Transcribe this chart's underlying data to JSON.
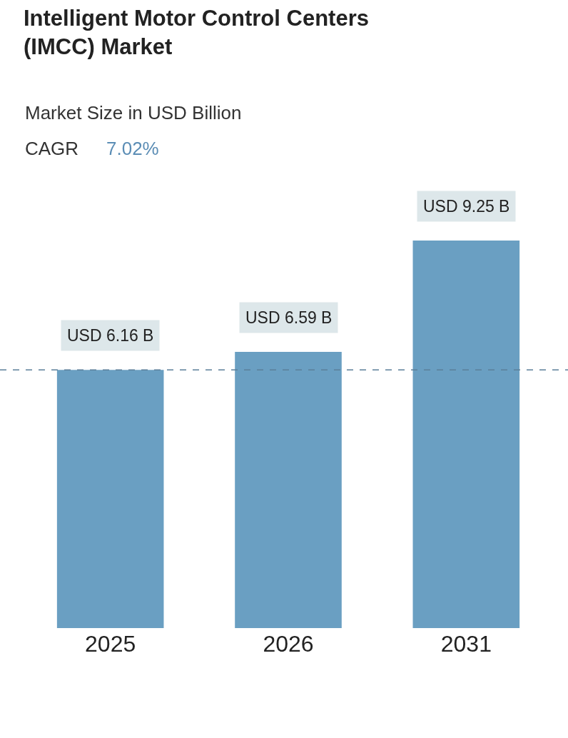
{
  "chart_data": {
    "type": "bar",
    "title": "Intelligent Motor Control Centers (IMCC) Market",
    "subtitle": "Market Size in USD Billion",
    "annotations": [
      "CAGR",
      "7.02%"
    ],
    "categories": [
      "2025",
      "2026",
      "2031"
    ],
    "values": [
      6.16,
      6.59,
      9.25
    ],
    "value_labels": [
      "USD 6.16 B",
      "USD 6.59 B",
      "USD 9.25 B"
    ],
    "color": "#6a9fc2",
    "ref_lines": [
      {
        "axis": "y",
        "value": 6.16,
        "color": "#5a7f99",
        "line_style": "dashed"
      }
    ],
    "legend": false
  }
}
